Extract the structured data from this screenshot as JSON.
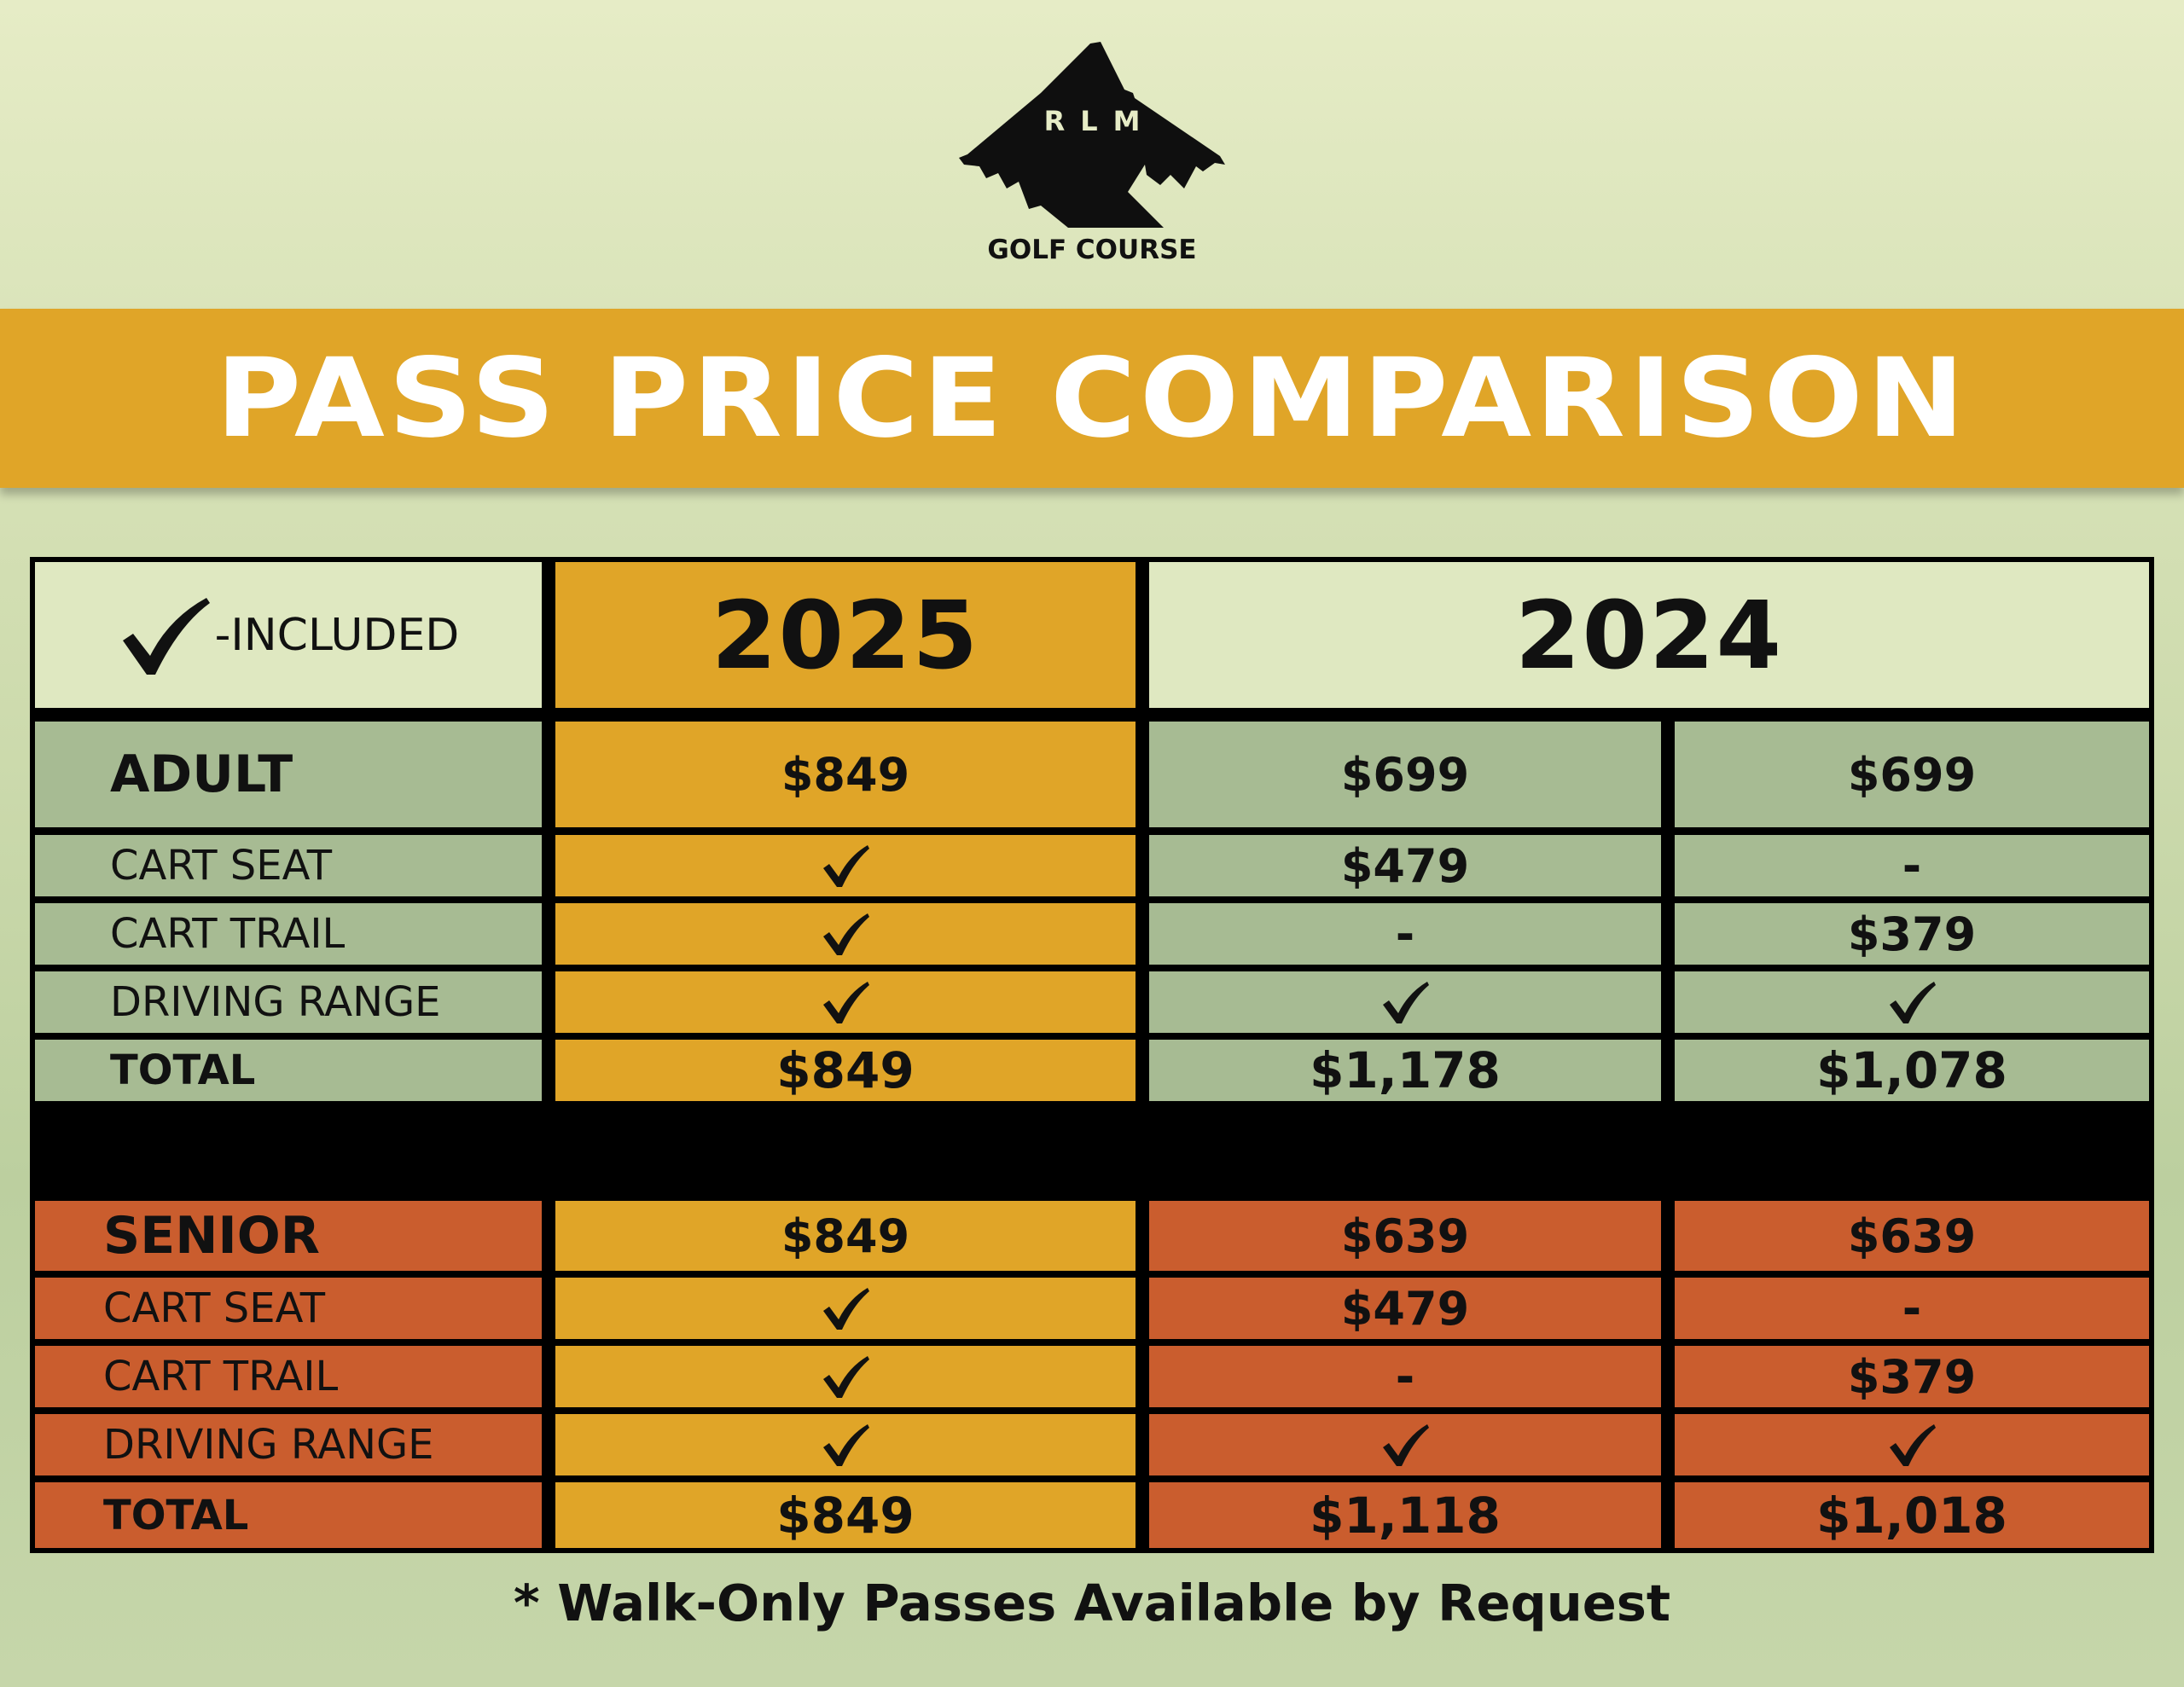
{
  "logo": {
    "letters": "RLM",
    "subtitle": "GOLF COURSE",
    "icon": "mountain-bird-logo-icon",
    "color": "#0f0f0f"
  },
  "banner": {
    "title": "PASS PRICE COMPARISON",
    "color": "#e0a528"
  },
  "table": {
    "legend_text": "-INCLUDED",
    "legend_icon": "checkmark-icon",
    "year_2025": "2025",
    "year_2024": "2024",
    "adult": {
      "rows": [
        {
          "label": "ADULT",
          "c2025": "$849",
          "c2024a": "$699",
          "c2024b": "$699"
        },
        {
          "label": "CART SEAT",
          "c2025": "check",
          "c2024a": "$479",
          "c2024b": "-"
        },
        {
          "label": "CART TRAIL",
          "c2025": "check",
          "c2024a": "-",
          "c2024b": "$379"
        },
        {
          "label": "DRIVING RANGE",
          "c2025": "check",
          "c2024a": "check",
          "c2024b": "check"
        },
        {
          "label": "TOTAL",
          "c2025": "$849",
          "c2024a": "$1,178",
          "c2024b": "$1,078"
        }
      ]
    },
    "senior": {
      "rows": [
        {
          "label": "SENIOR",
          "c2025": "$849",
          "c2024a": "$639",
          "c2024b": "$639"
        },
        {
          "label": "CART SEAT",
          "c2025": "check",
          "c2024a": "$479",
          "c2024b": "-"
        },
        {
          "label": "CART TRAIL",
          "c2025": "check",
          "c2024a": "-",
          "c2024b": "$379"
        },
        {
          "label": "DRIVING RANGE",
          "c2025": "check",
          "c2024a": "check",
          "c2024b": "check"
        },
        {
          "label": "TOTAL",
          "c2025": "$849",
          "c2024a": "$1,118",
          "c2024b": "$1,018"
        }
      ]
    },
    "colors": {
      "adult_rows": "#a7bb93",
      "senior_rows": "#ca5d2e",
      "col_2025": "#e0a528",
      "header_bg": "#dfe8c1",
      "grid": "#000000"
    }
  },
  "footer": {
    "note": "* Walk-Only Passes Available by Request"
  }
}
